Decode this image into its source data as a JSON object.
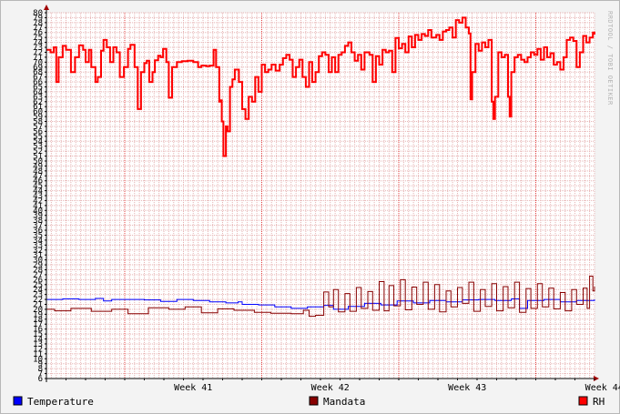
{
  "watermark": "RRDTOOL / TOBI OETIKER",
  "chart_data": {
    "type": "line",
    "title": "",
    "xlabel": "",
    "ylabel": "",
    "ylim": [
      6,
      80
    ],
    "y_ticks": [
      6,
      7,
      8,
      9,
      10,
      11,
      12,
      13,
      14,
      15,
      16,
      17,
      18,
      19,
      20,
      21,
      22,
      23,
      24,
      25,
      26,
      27,
      28,
      29,
      30,
      31,
      32,
      33,
      34,
      35,
      36,
      37,
      38,
      39,
      40,
      41,
      42,
      43,
      44,
      45,
      46,
      47,
      48,
      49,
      50,
      51,
      52,
      53,
      54,
      55,
      56,
      57,
      58,
      59,
      60,
      61,
      62,
      63,
      64,
      65,
      66,
      67,
      68,
      69,
      70,
      71,
      72,
      73,
      74,
      75,
      76,
      77,
      78,
      79,
      80
    ],
    "x_range": [
      0,
      672
    ],
    "x_unit": "hours from start of plotted period",
    "week_boundaries": [
      96,
      264,
      432,
      600
    ],
    "x_ticks": [
      {
        "label": "Week 41",
        "x": 180
      },
      {
        "label": "Week 42",
        "x": 348
      },
      {
        "label": "Week 43",
        "x": 516
      },
      {
        "label": "Week 44",
        "x": 684
      }
    ],
    "grid": true,
    "legend_position": "bottom",
    "series": [
      {
        "name": "Temperature",
        "color": "#0000ff",
        "points": [
          [
            0,
            22
          ],
          [
            20,
            22.1
          ],
          [
            40,
            22
          ],
          [
            60,
            22.2
          ],
          [
            70,
            21.7
          ],
          [
            80,
            22
          ],
          [
            100,
            22
          ],
          [
            120,
            21.9
          ],
          [
            140,
            21.6
          ],
          [
            160,
            22
          ],
          [
            180,
            21.8
          ],
          [
            200,
            21.5
          ],
          [
            220,
            21.3
          ],
          [
            235,
            21.5
          ],
          [
            240,
            21
          ],
          [
            260,
            20.9
          ],
          [
            280,
            20.5
          ],
          [
            300,
            20.2
          ],
          [
            320,
            20.5
          ],
          [
            340,
            20.8
          ],
          [
            352,
            20
          ],
          [
            370,
            20.6
          ],
          [
            390,
            21.2
          ],
          [
            410,
            20.9
          ],
          [
            430,
            21.7
          ],
          [
            450,
            21.3
          ],
          [
            470,
            21.8
          ],
          [
            490,
            21.5
          ],
          [
            510,
            21.9
          ],
          [
            530,
            22
          ],
          [
            550,
            21.8
          ],
          [
            570,
            22.1
          ],
          [
            580,
            20.2
          ],
          [
            590,
            21.8
          ],
          [
            610,
            22
          ],
          [
            630,
            21.5
          ],
          [
            650,
            21.8
          ],
          [
            672,
            22
          ]
        ]
      },
      {
        "name": "Mandata",
        "color": "#880000",
        "points": [
          [
            0,
            20
          ],
          [
            10,
            19.7
          ],
          [
            30,
            20.2
          ],
          [
            55,
            19.6
          ],
          [
            80,
            20
          ],
          [
            100,
            19.1
          ],
          [
            125,
            20.3
          ],
          [
            150,
            20
          ],
          [
            170,
            20.5
          ],
          [
            190,
            19.3
          ],
          [
            210,
            20.1
          ],
          [
            230,
            19.8
          ],
          [
            255,
            19.4
          ],
          [
            275,
            19.2
          ],
          [
            300,
            19.1
          ],
          [
            315,
            19.8
          ],
          [
            322,
            18.6
          ],
          [
            330,
            18.8
          ],
          [
            340,
            23.5
          ],
          [
            346,
            20.5
          ],
          [
            352,
            24
          ],
          [
            358,
            19.5
          ],
          [
            366,
            23.2
          ],
          [
            372,
            19.6
          ],
          [
            380,
            24.4
          ],
          [
            386,
            20.2
          ],
          [
            394,
            23.6
          ],
          [
            400,
            19.8
          ],
          [
            408,
            25.6
          ],
          [
            414,
            19.7
          ],
          [
            420,
            24.8
          ],
          [
            426,
            20.7
          ],
          [
            434,
            26
          ],
          [
            440,
            19.9
          ],
          [
            448,
            24.5
          ],
          [
            454,
            21
          ],
          [
            462,
            25.5
          ],
          [
            468,
            20
          ],
          [
            476,
            25
          ],
          [
            482,
            19.5
          ],
          [
            490,
            23.7
          ],
          [
            496,
            20.5
          ],
          [
            504,
            24.4
          ],
          [
            510,
            21.2
          ],
          [
            518,
            25.5
          ],
          [
            524,
            19.6
          ],
          [
            532,
            24
          ],
          [
            538,
            20.6
          ],
          [
            546,
            25.2
          ],
          [
            552,
            19.7
          ],
          [
            560,
            24.6
          ],
          [
            566,
            20.3
          ],
          [
            574,
            25.5
          ],
          [
            580,
            19.4
          ],
          [
            588,
            24.2
          ],
          [
            594,
            20.2
          ],
          [
            602,
            25.2
          ],
          [
            608,
            20.5
          ],
          [
            616,
            24.3
          ],
          [
            622,
            20.1
          ],
          [
            630,
            23.4
          ],
          [
            636,
            19.7
          ],
          [
            644,
            24
          ],
          [
            650,
            21
          ],
          [
            658,
            24.3
          ],
          [
            663,
            20.2
          ],
          [
            666,
            26.7
          ],
          [
            670,
            23.7
          ],
          [
            672,
            24.6
          ]
        ]
      },
      {
        "name": "RH",
        "color": "#ff0000",
        "points": [
          [
            0,
            72.5
          ],
          [
            5,
            72
          ],
          [
            9,
            73
          ],
          [
            12,
            66
          ],
          [
            15,
            71
          ],
          [
            20,
            73.3
          ],
          [
            24,
            72.5
          ],
          [
            30,
            68
          ],
          [
            35,
            71
          ],
          [
            40,
            73.4
          ],
          [
            45,
            72.5
          ],
          [
            48,
            70
          ],
          [
            52,
            72.5
          ],
          [
            55,
            69
          ],
          [
            60,
            66
          ],
          [
            63,
            67
          ],
          [
            67,
            72.3
          ],
          [
            70,
            74.5
          ],
          [
            74,
            73
          ],
          [
            78,
            70
          ],
          [
            82,
            73
          ],
          [
            86,
            72
          ],
          [
            90,
            67
          ],
          [
            95,
            69
          ],
          [
            100,
            72.7
          ],
          [
            103,
            73.5
          ],
          [
            108,
            69
          ],
          [
            112,
            60.5
          ],
          [
            116,
            68
          ],
          [
            120,
            69.8
          ],
          [
            123,
            70.3
          ],
          [
            126,
            66
          ],
          [
            130,
            68
          ],
          [
            133,
            70.4
          ],
          [
            137,
            71.3
          ],
          [
            140,
            71
          ],
          [
            143,
            72.7
          ],
          [
            147,
            70
          ],
          [
            150,
            62.8
          ],
          [
            154,
            69
          ],
          [
            160,
            70
          ],
          [
            166,
            70.2
          ],
          [
            173,
            70.3
          ],
          [
            180,
            70
          ],
          [
            186,
            69
          ],
          [
            190,
            69.3
          ],
          [
            196,
            69.2
          ],
          [
            200,
            69.3
          ],
          [
            205,
            72.5
          ],
          [
            208,
            69
          ],
          [
            212,
            62
          ],
          [
            214,
            62.3
          ],
          [
            215,
            58
          ],
          [
            217,
            51
          ],
          [
            220,
            57
          ],
          [
            222,
            56
          ],
          [
            225,
            65
          ],
          [
            228,
            66.5
          ],
          [
            231,
            68.5
          ],
          [
            236,
            66
          ],
          [
            240,
            60.5
          ],
          [
            244,
            58.5
          ],
          [
            248,
            63
          ],
          [
            252,
            62
          ],
          [
            256,
            67
          ],
          [
            260,
            64
          ],
          [
            264,
            69.5
          ],
          [
            268,
            68
          ],
          [
            272,
            68.5
          ],
          [
            276,
            69.5
          ],
          [
            281,
            68.3
          ],
          [
            286,
            69.5
          ],
          [
            290,
            70.8
          ],
          [
            294,
            71.5
          ],
          [
            298,
            70.5
          ],
          [
            302,
            67
          ],
          [
            306,
            69
          ],
          [
            310,
            70.5
          ],
          [
            314,
            67
          ],
          [
            318,
            65
          ],
          [
            322,
            70
          ],
          [
            326,
            66
          ],
          [
            330,
            68
          ],
          [
            334,
            71.2
          ],
          [
            338,
            72
          ],
          [
            342,
            71.5
          ],
          [
            346,
            68
          ],
          [
            350,
            71
          ],
          [
            354,
            68
          ],
          [
            358,
            71.5
          ],
          [
            362,
            72
          ],
          [
            366,
            73.3
          ],
          [
            370,
            74
          ],
          [
            374,
            72
          ],
          [
            378,
            70.3
          ],
          [
            382,
            71.5
          ],
          [
            386,
            68.5
          ],
          [
            390,
            72
          ],
          [
            396,
            71.5
          ],
          [
            400,
            66
          ],
          [
            404,
            71.2
          ],
          [
            408,
            69.5
          ],
          [
            412,
            72.5
          ],
          [
            416,
            72
          ],
          [
            420,
            72.3
          ],
          [
            424,
            68
          ],
          [
            428,
            74.9
          ],
          [
            432,
            72.8
          ],
          [
            436,
            73.7
          ],
          [
            440,
            72
          ],
          [
            444,
            75.2
          ],
          [
            448,
            73
          ],
          [
            452,
            75.5
          ],
          [
            456,
            74.5
          ],
          [
            460,
            75.7
          ],
          [
            464,
            75.3
          ],
          [
            468,
            76.5
          ],
          [
            472,
            75
          ],
          [
            478,
            75.5
          ],
          [
            482,
            74.5
          ],
          [
            486,
            76.2
          ],
          [
            490,
            76.5
          ],
          [
            494,
            77
          ],
          [
            498,
            75
          ],
          [
            502,
            78.5
          ],
          [
            506,
            78
          ],
          [
            510,
            79
          ],
          [
            514,
            77
          ],
          [
            518,
            75.8
          ],
          [
            520,
            62.5
          ],
          [
            522,
            68
          ],
          [
            526,
            73.7
          ],
          [
            530,
            72.3
          ],
          [
            534,
            74
          ],
          [
            538,
            73
          ],
          [
            542,
            74.5
          ],
          [
            546,
            62
          ],
          [
            548,
            58.5
          ],
          [
            550,
            63
          ],
          [
            554,
            72
          ],
          [
            558,
            71
          ],
          [
            562,
            71.5
          ],
          [
            566,
            63
          ],
          [
            568,
            59
          ],
          [
            570,
            68
          ],
          [
            574,
            71
          ],
          [
            578,
            71.5
          ],
          [
            582,
            70.5
          ],
          [
            586,
            70
          ],
          [
            590,
            71
          ],
          [
            594,
            72
          ],
          [
            598,
            71.5
          ],
          [
            602,
            72.7
          ],
          [
            606,
            70.5
          ],
          [
            610,
            73
          ],
          [
            614,
            71
          ],
          [
            618,
            71.8
          ],
          [
            622,
            69.5
          ],
          [
            626,
            70
          ],
          [
            630,
            68.5
          ],
          [
            634,
            71
          ],
          [
            638,
            74.5
          ],
          [
            642,
            75
          ],
          [
            646,
            74.3
          ],
          [
            650,
            69
          ],
          [
            654,
            72
          ],
          [
            658,
            75.3
          ],
          [
            662,
            74
          ],
          [
            666,
            75
          ],
          [
            670,
            76
          ],
          [
            672,
            75.6
          ]
        ]
      }
    ]
  }
}
